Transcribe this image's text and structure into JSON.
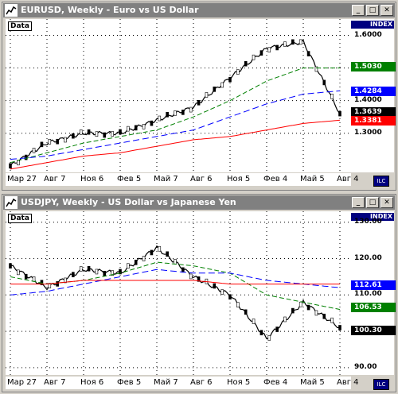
{
  "chart1": {
    "title": "EURUSD, Weekly - Euro vs US Dollar",
    "data_label": "Data",
    "index_label": "INDEX",
    "y_ticks": [
      "1.6000",
      "1.5000",
      "1.4000",
      "1.3000"
    ],
    "price_tags": [
      {
        "value": "1.5030",
        "color": "#008000"
      },
      {
        "value": "1.4284",
        "color": "#0000ff"
      },
      {
        "value": "1.3639",
        "color": "#000000"
      },
      {
        "value": "1.3381",
        "color": "#ff0000"
      }
    ],
    "x_labels": [
      "Мар 27",
      "Авг 7",
      "Ноя 6",
      "Фев 5",
      "Май 7",
      "Авг 6",
      "Ноя 5",
      "Фев 4",
      "Май 5",
      "Авг 4"
    ]
  },
  "chart2": {
    "title": "USDJPY, Weekly - US Dollar vs Japanese Yen",
    "data_label": "Data",
    "index_label": "INDEX",
    "y_ticks": [
      "130.00",
      "120.00",
      "110.00",
      "100.00",
      "90.00"
    ],
    "price_tags": [
      {
        "value": "112.61",
        "color": "#0000ff"
      },
      {
        "value": "106.53",
        "color": "#008000"
      },
      {
        "value": "100.30",
        "color": "#000000"
      }
    ],
    "x_labels": [
      "Мар 27",
      "Авг 7",
      "Ноя 6",
      "Фев 5",
      "Май 7",
      "Авг 6",
      "Ноя 5",
      "Фев 4",
      "Май 5",
      "Авг 4"
    ]
  },
  "chart_data": [
    {
      "type": "line",
      "title": "EURUSD, Weekly - Euro vs US Dollar",
      "x": [
        "Мар 27",
        "Авг 7",
        "Ноя 6",
        "Фев 5",
        "Май 7",
        "Авг 6",
        "Ноя 5",
        "Фев 4",
        "Май 5",
        "Авг 4"
      ],
      "ylim": [
        1.18,
        1.65
      ],
      "series": [
        {
          "values": [
            1.2,
            1.27,
            1.3,
            1.3,
            1.34,
            1.38,
            1.47,
            1.56,
            1.58,
            1.36
          ]
        },
        {
          "values": [
            1.21,
            1.24,
            1.27,
            1.29,
            1.31,
            1.35,
            1.4,
            1.46,
            1.5,
            1.5
          ]
        },
        {
          "values": [
            1.22,
            1.23,
            1.25,
            1.27,
            1.29,
            1.31,
            1.35,
            1.39,
            1.42,
            1.43
          ]
        },
        {
          "values": [
            1.19,
            1.21,
            1.23,
            1.24,
            1.26,
            1.28,
            1.29,
            1.31,
            1.33,
            1.34
          ]
        }
      ]
    },
    {
      "type": "line",
      "title": "USDJPY, Weekly - US Dollar vs Japanese Yen",
      "x": [
        "Мар 27",
        "Авг 7",
        "Ноя 6",
        "Фев 5",
        "Май 7",
        "Авг 6",
        "Ноя 5",
        "Фев 4",
        "Май 5",
        "Авг 4"
      ],
      "ylim": [
        88,
        133
      ],
      "series": [
        {
          "values": [
            118,
            112,
            117,
            116,
            123,
            115,
            110,
            98,
            108,
            101
          ]
        },
        {
          "values": [
            115,
            113,
            114,
            116,
            119,
            118,
            116,
            110,
            108,
            106
          ]
        },
        {
          "values": [
            110,
            111,
            113,
            115,
            117,
            116,
            116,
            114,
            113,
            112
          ]
        },
        {
          "values": [
            113,
            113,
            114,
            114,
            114,
            114,
            113,
            113,
            113,
            113
          ]
        }
      ]
    }
  ]
}
